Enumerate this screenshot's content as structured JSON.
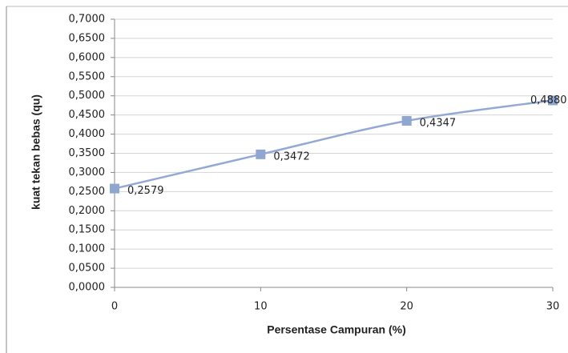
{
  "chart_data": {
    "type": "line",
    "x_label": "Persentase Campuran (%)",
    "y_label": "kuat tekan bebas (qu)",
    "x": [
      0,
      10,
      20,
      30
    ],
    "series": [
      {
        "name": "qu",
        "color": "#93a9d4",
        "marker_color": "#8fa6d1",
        "values": [
          0.2579,
          0.3472,
          0.4347,
          0.488
        ],
        "value_labels": [
          "0,2579",
          "0,3472",
          "0,4347",
          "0,4880"
        ]
      }
    ],
    "xlim": [
      0,
      30
    ],
    "xticks": [
      0,
      10,
      20,
      30
    ],
    "ylim": [
      0,
      0.7
    ],
    "yticks": [
      {
        "value": 0,
        "label": "0,0000"
      },
      {
        "value": 0.05,
        "label": "0,0500"
      },
      {
        "value": 0.1,
        "label": "0,1000"
      },
      {
        "value": 0.15,
        "label": "0,1500"
      },
      {
        "value": 0.2,
        "label": "0,2000"
      },
      {
        "value": 0.25,
        "label": "0,2500"
      },
      {
        "value": 0.3,
        "label": "0,3000"
      },
      {
        "value": 0.35,
        "label": "0,3500"
      },
      {
        "value": 0.4,
        "label": "0,4000"
      },
      {
        "value": 0.45,
        "label": "0,4500"
      },
      {
        "value": 0.5,
        "label": "0,5000"
      },
      {
        "value": 0.55,
        "label": "0,5500"
      },
      {
        "value": 0.6,
        "label": "0,6000"
      },
      {
        "value": 0.65,
        "label": "0,6500"
      },
      {
        "value": 0.7,
        "label": "0,7000"
      }
    ],
    "grid": true
  }
}
